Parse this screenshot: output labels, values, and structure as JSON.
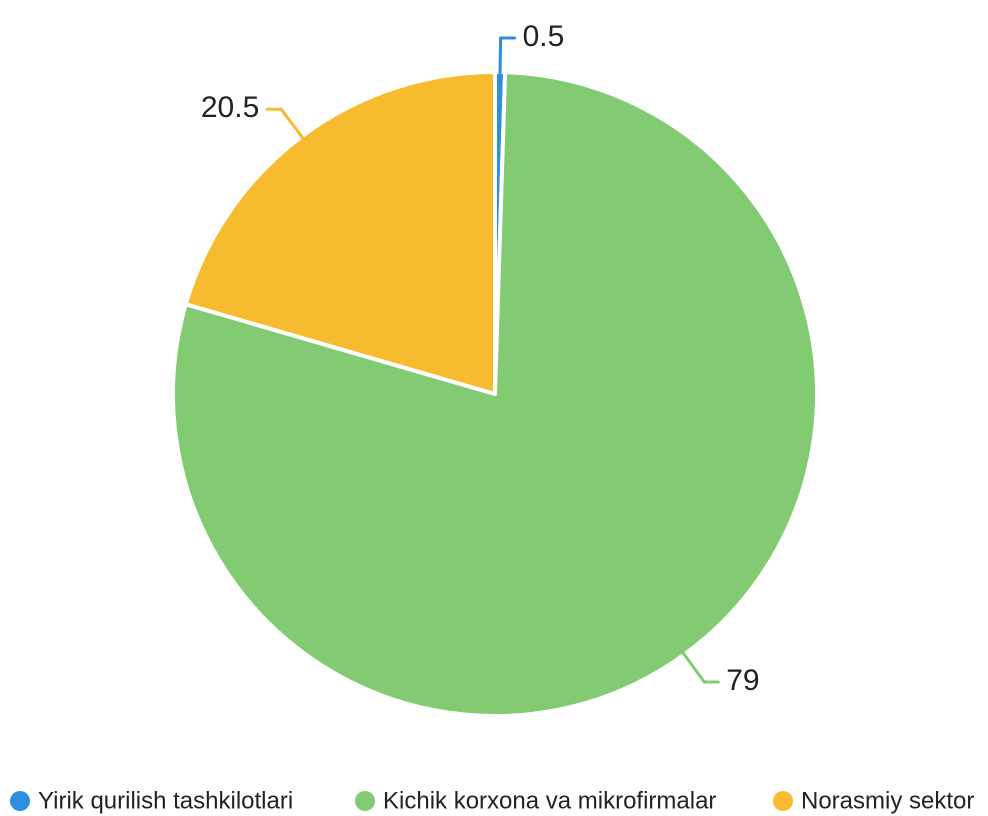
{
  "chart_data": {
    "type": "pie",
    "categories": [
      "Yirik qurilish tashkilotlari",
      "Kichik korxona va mikrofirmalar",
      "Norasmiy sektor"
    ],
    "values": [
      0.5,
      79,
      20.5
    ],
    "colors": [
      "#2e8fe0",
      "#82cb72",
      "#f6bb2e"
    ],
    "legend": "bottom"
  }
}
